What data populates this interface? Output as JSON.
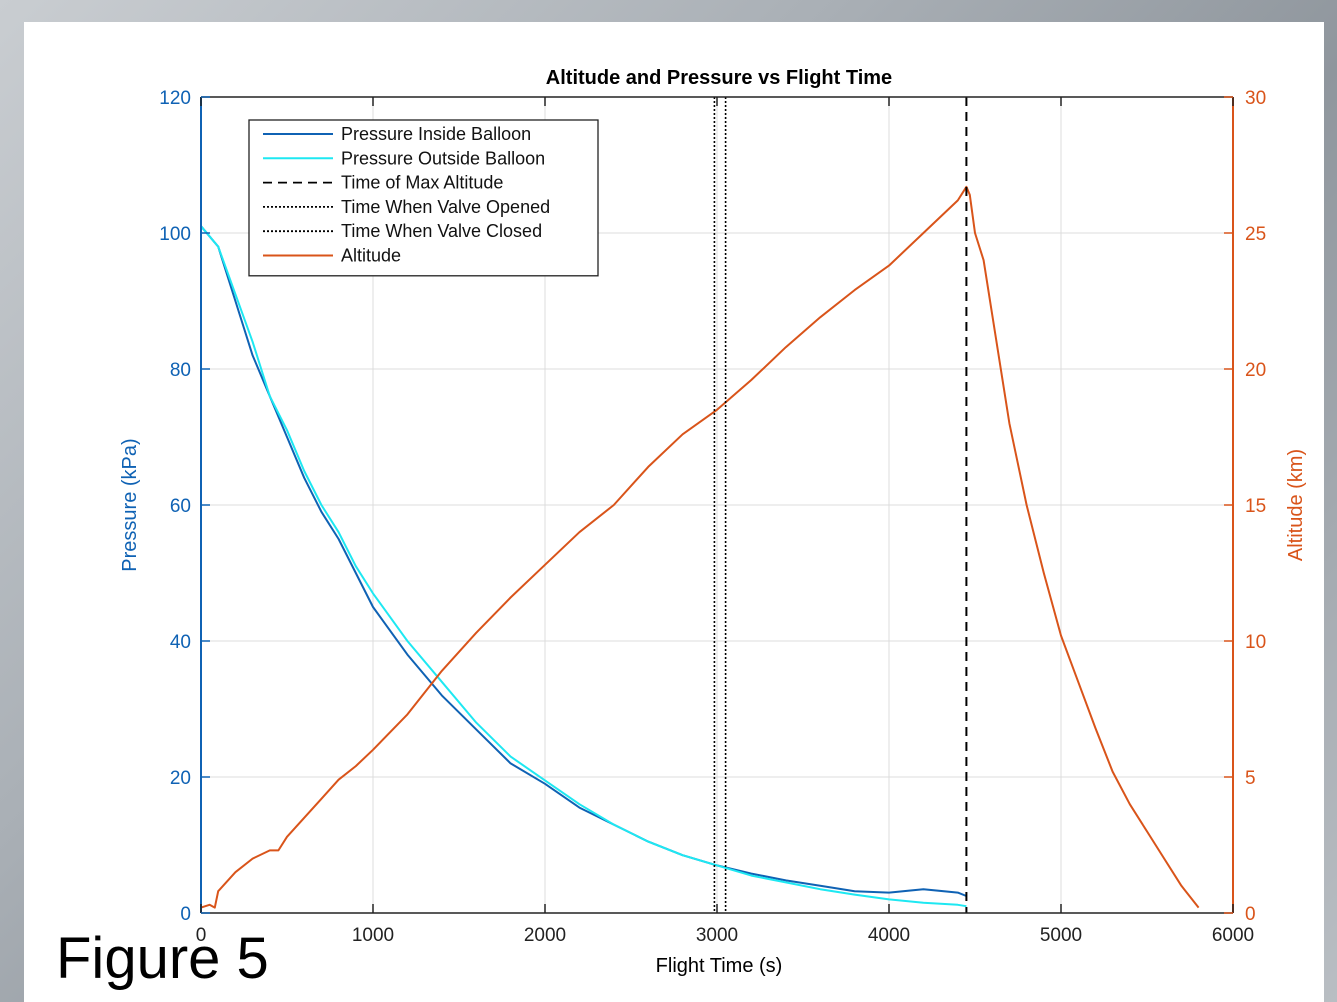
{
  "figure_caption": "Figure 5",
  "colors": {
    "pressure_inside": "#0f62b4",
    "pressure_outside": "#1ee8f2",
    "altitude": "#d9541a",
    "left_axis": "#0f62b4",
    "right_axis": "#d9541a",
    "grid": "#dcdcdc"
  },
  "chart_data": {
    "type": "line",
    "title": "Altitude and Pressure vs Flight Time",
    "xlabel": "Flight Time (s)",
    "ylabel_left": "Pressure (kPa)",
    "ylabel_right": "Altitude (km)",
    "xlim": [
      0,
      6000
    ],
    "ylim_left": [
      0,
      120
    ],
    "ylim_right": [
      0,
      30
    ],
    "x_ticks": [
      "0",
      "1000",
      "2000",
      "3000",
      "4000",
      "5000",
      "6000"
    ],
    "y_left_ticks": [
      "0",
      "20",
      "40",
      "60",
      "80",
      "100",
      "120"
    ],
    "y_right_ticks": [
      "0",
      "5",
      "10",
      "15",
      "20",
      "25",
      "30"
    ],
    "grid": true,
    "legend_position": "top-left",
    "series": [
      {
        "name": "Pressure Inside Balloon",
        "axis": "left",
        "style": "solid",
        "x": [
          0,
          100,
          200,
          300,
          400,
          500,
          600,
          700,
          800,
          900,
          1000,
          1200,
          1400,
          1600,
          1800,
          2000,
          2200,
          2400,
          2600,
          2800,
          3000,
          3200,
          3400,
          3600,
          3800,
          4000,
          4200,
          4400,
          4450
        ],
        "y": [
          101,
          98,
          90,
          82,
          76,
          70,
          64,
          59,
          55,
          50,
          45,
          38,
          32,
          27,
          22,
          19,
          15.5,
          13,
          10.5,
          8.5,
          7,
          5.8,
          4.8,
          4,
          3.2,
          3,
          3.5,
          3,
          2.5
        ]
      },
      {
        "name": "Pressure Outside Balloon",
        "axis": "left",
        "style": "solid",
        "x": [
          0,
          100,
          200,
          300,
          400,
          500,
          600,
          700,
          800,
          900,
          1000,
          1200,
          1400,
          1600,
          1800,
          2000,
          2200,
          2400,
          2600,
          2800,
          3000,
          3200,
          3400,
          3600,
          3800,
          4000,
          4200,
          4400,
          4450
        ],
        "y": [
          101,
          98,
          91,
          84,
          76,
          71,
          65,
          60,
          56,
          51,
          47,
          40,
          34,
          28,
          23,
          19.5,
          16,
          13,
          10.5,
          8.5,
          7,
          5.5,
          4.5,
          3.5,
          2.7,
          2,
          1.5,
          1.2,
          1
        ]
      },
      {
        "name": "Altitude",
        "axis": "right",
        "style": "solid",
        "x": [
          0,
          50,
          80,
          100,
          200,
          300,
          400,
          450,
          500,
          600,
          700,
          800,
          900,
          1000,
          1200,
          1400,
          1600,
          1800,
          2000,
          2200,
          2400,
          2600,
          2800,
          3000,
          3200,
          3400,
          3600,
          3800,
          4000,
          4200,
          4400,
          4450,
          4470,
          4500,
          4550,
          4600,
          4700,
          4800,
          4900,
          5000,
          5100,
          5200,
          5300,
          5400,
          5500,
          5600,
          5700,
          5800
        ],
        "y": [
          0.2,
          0.3,
          0.2,
          0.8,
          1.5,
          2.0,
          2.3,
          2.3,
          2.8,
          3.5,
          4.2,
          4.9,
          5.4,
          6.0,
          7.3,
          8.9,
          10.3,
          11.6,
          12.8,
          14.0,
          15.0,
          16.4,
          17.6,
          18.5,
          19.6,
          20.8,
          21.9,
          22.9,
          23.8,
          25.0,
          26.2,
          26.7,
          26.4,
          25.0,
          24.0,
          22.0,
          18.0,
          15.0,
          12.5,
          10.2,
          8.5,
          6.8,
          5.2,
          4.0,
          3.0,
          2.0,
          1.0,
          0.2
        ]
      }
    ],
    "vertical_lines": [
      {
        "name": "Time of Max Altitude",
        "x": 4450,
        "style": "dashed"
      },
      {
        "name": "Time When Valve Opened",
        "x": 2985,
        "style": "dotted"
      },
      {
        "name": "Time When Valve Closed",
        "x": 3050,
        "style": "dotted"
      }
    ],
    "legend": [
      {
        "label": "Pressure Inside Balloon",
        "color": "#0f62b4",
        "style": "solid"
      },
      {
        "label": "Pressure Outside Balloon",
        "color": "#1ee8f2",
        "style": "solid"
      },
      {
        "label": "Time of Max Altitude",
        "color": "#000000",
        "style": "dashed"
      },
      {
        "label": "Time When Valve Opened",
        "color": "#000000",
        "style": "dotted"
      },
      {
        "label": "Time When Valve Closed",
        "color": "#000000",
        "style": "dotted"
      },
      {
        "label": "Altitude",
        "color": "#d9541a",
        "style": "solid"
      }
    ]
  }
}
